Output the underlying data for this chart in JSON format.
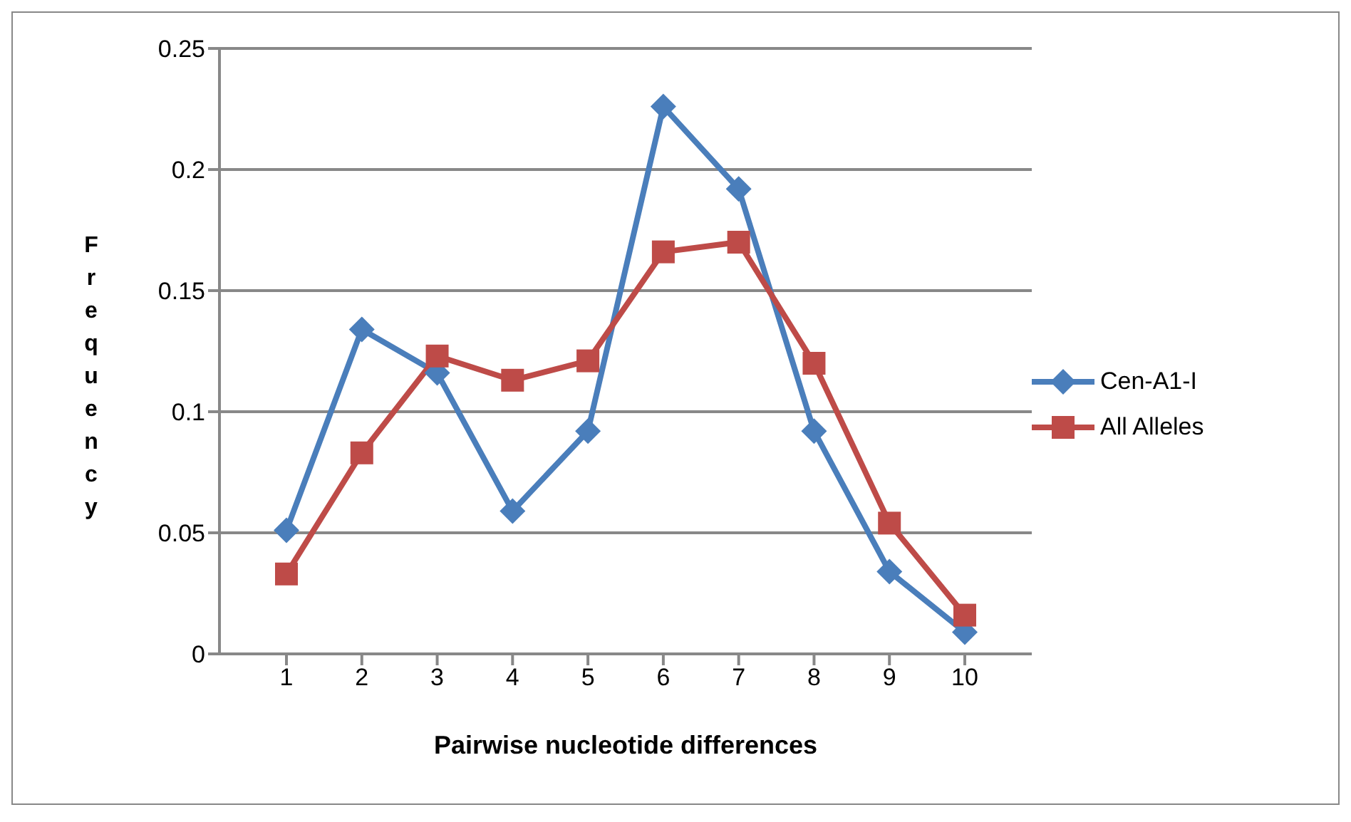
{
  "chart_data": {
    "type": "line",
    "xlabel": "Pairwise nucleotide differences",
    "ylabel": "Frequency",
    "categories": [
      "1",
      "2",
      "3",
      "4",
      "5",
      "6",
      "7",
      "8",
      "9",
      "10"
    ],
    "series": [
      {
        "name": "Cen-A1-I",
        "color": "#4a7ebb",
        "marker": "diamond",
        "values": [
          0.051,
          0.134,
          0.116,
          0.059,
          0.092,
          0.226,
          0.192,
          0.092,
          0.034,
          0.009
        ]
      },
      {
        "name": "All Alleles",
        "color": "#be4b48",
        "marker": "square",
        "values": [
          0.033,
          0.083,
          0.123,
          0.113,
          0.121,
          0.166,
          0.17,
          0.12,
          0.054,
          0.016
        ]
      }
    ],
    "ylim": [
      0,
      0.25
    ],
    "yticks": [
      0,
      0.05,
      0.1,
      0.15,
      0.2,
      0.25
    ],
    "grid": "y",
    "legend": "right"
  }
}
